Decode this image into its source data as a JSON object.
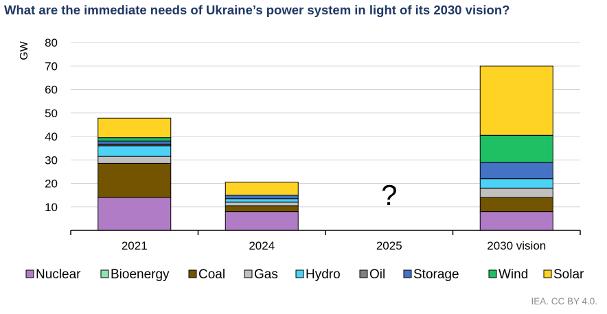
{
  "title": "What are the immediate needs of Ukraine’s power system in light of its 2030 vision?",
  "credit": "IEA. CC BY 4.0.",
  "chart_data": {
    "type": "bar",
    "stacked": true,
    "ylabel": "GW",
    "xlabel": "",
    "ylim": [
      0,
      80
    ],
    "yticks": [
      10,
      20,
      30,
      40,
      50,
      60,
      70,
      80
    ],
    "grid": true,
    "legend_position": "bottom",
    "categories": [
      "2021",
      "2024",
      "2025",
      "2030 vision"
    ],
    "annotations": [
      {
        "category": "2025",
        "text": "?"
      }
    ],
    "series": [
      {
        "name": "Nuclear",
        "color": "#b07cc6",
        "values": [
          14,
          8,
          null,
          8
        ]
      },
      {
        "name": "Bioenergy",
        "color": "#8fe3b0",
        "values": [
          0,
          0,
          null,
          0
        ]
      },
      {
        "name": "Coal",
        "color": "#735400",
        "values": [
          14.5,
          2.5,
          null,
          6
        ]
      },
      {
        "name": "Gas",
        "color": "#c0c0c0",
        "values": [
          3,
          1.5,
          null,
          4
        ]
      },
      {
        "name": "Hydro",
        "color": "#4cd2f5",
        "values": [
          4.5,
          1.5,
          null,
          4
        ]
      },
      {
        "name": "Oil",
        "color": "#808080",
        "values": [
          0.7,
          0,
          null,
          0
        ]
      },
      {
        "name": "Storage",
        "color": "#4472c4",
        "values": [
          1.3,
          1.5,
          null,
          7
        ]
      },
      {
        "name": "Wind",
        "color": "#1fbf63",
        "values": [
          1.5,
          0,
          null,
          11.5
        ]
      },
      {
        "name": "Solar",
        "color": "#ffd324",
        "values": [
          8.3,
          5.5,
          null,
          29.5
        ]
      }
    ]
  }
}
